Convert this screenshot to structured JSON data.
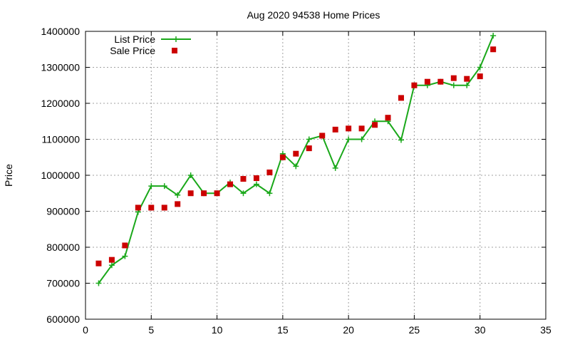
{
  "chart_data": {
    "type": "line",
    "title": "Aug 2020 94538 Home Prices",
    "xlabel": "",
    "ylabel": "Price",
    "xlim": [
      0,
      35
    ],
    "ylim": [
      600000,
      1400000
    ],
    "xticks": [
      0,
      5,
      10,
      15,
      20,
      25,
      30,
      35
    ],
    "yticks": [
      600000,
      700000,
      800000,
      900000,
      1000000,
      1100000,
      1200000,
      1300000,
      1400000
    ],
    "grid": true,
    "legend_position": "top-left",
    "series": [
      {
        "name": "List Price",
        "style": "line-points",
        "color": "#1aa81a",
        "marker": "plus",
        "x": [
          1,
          2,
          3,
          4,
          5,
          6,
          7,
          8,
          9,
          10,
          11,
          12,
          13,
          14,
          15,
          16,
          17,
          18,
          19,
          20,
          21,
          22,
          23,
          24,
          25,
          26,
          27,
          28,
          29,
          30,
          31
        ],
        "values": [
          700000,
          750000,
          775000,
          898000,
          970000,
          970000,
          945000,
          1000000,
          950000,
          950000,
          980000,
          950000,
          975000,
          950000,
          1060000,
          1025000,
          1100000,
          1110000,
          1020000,
          1100000,
          1100000,
          1150000,
          1150000,
          1098000,
          1250000,
          1250000,
          1260000,
          1250000,
          1250000,
          1300000,
          1388000
        ]
      },
      {
        "name": "Sale Price",
        "style": "points",
        "color": "#cc0000",
        "marker": "square",
        "x": [
          1,
          2,
          3,
          4,
          5,
          6,
          7,
          8,
          9,
          10,
          11,
          12,
          13,
          14,
          15,
          16,
          17,
          18,
          19,
          20,
          21,
          22,
          23,
          24,
          25,
          26,
          27,
          28,
          29,
          30,
          31
        ],
        "values": [
          755000,
          765000,
          805000,
          910000,
          910000,
          910000,
          920000,
          950000,
          950000,
          950000,
          975000,
          990000,
          992000,
          1008000,
          1050000,
          1060000,
          1075000,
          1110000,
          1127000,
          1130000,
          1130000,
          1140000,
          1160000,
          1215000,
          1250000,
          1260000,
          1260000,
          1270000,
          1268000,
          1275000,
          1350000
        ]
      }
    ]
  }
}
